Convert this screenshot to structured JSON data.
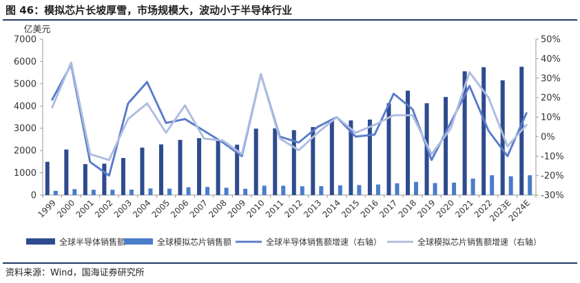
{
  "figure": {
    "title": "图 46：模拟芯片长坡厚雪，市场规模大，波动小于半导体行业",
    "source": "资料来源：Wind，国海证券研究所",
    "accent_color": "#1f3864"
  },
  "chart_data": {
    "type": "bar",
    "categories": [
      "1999",
      "2000",
      "2001",
      "2002",
      "2003",
      "2004",
      "2005",
      "2006",
      "2007",
      "2008",
      "2009",
      "2010",
      "2011",
      "2012",
      "2013",
      "2014",
      "2015",
      "2016",
      "2017",
      "2018",
      "2019",
      "2020",
      "2021",
      "2022",
      "2023E",
      "2024E"
    ],
    "y_left": {
      "label": "亿美元",
      "min": 0,
      "max": 7000,
      "ticks": [
        0,
        1000,
        2000,
        3000,
        4000,
        5000,
        6000,
        7000
      ]
    },
    "y_right": {
      "min": -30,
      "max": 50,
      "ticks": [
        -30,
        -20,
        -10,
        0,
        10,
        20,
        30,
        40,
        50
      ],
      "tick_labels": [
        "-30%",
        "-20%",
        "-10%",
        "0%",
        "10%",
        "20%",
        "30%",
        "40%",
        "50%"
      ]
    },
    "series": [
      {
        "name": "全球半导体销售额",
        "kind": "bar",
        "axis": "left",
        "color": "#2e4b8f",
        "values": [
          1494,
          2044,
          1390,
          1410,
          1663,
          2130,
          2275,
          2477,
          2556,
          2486,
          2263,
          2983,
          2995,
          2916,
          3056,
          3358,
          3352,
          3389,
          4122,
          4688,
          4123,
          4404,
          5559,
          5741,
          5151,
          5760
        ]
      },
      {
        "name": "全球模拟芯片销售额",
        "kind": "bar",
        "axis": "left",
        "color": "#4a7cc9",
        "values": [
          190,
          267,
          240,
          240,
          245,
          297,
          290,
          350,
          365,
          330,
          280,
          420,
          420,
          395,
          400,
          435,
          450,
          475,
          530,
          590,
          540,
          560,
          740,
          890,
          845,
          890
        ]
      },
      {
        "name": "全球半导体销售额增速（右轴）",
        "kind": "line",
        "axis": "right",
        "color": "#5b7ccb",
        "values": [
          19,
          37,
          -13,
          -20,
          17,
          28,
          7,
          9,
          3,
          -3,
          -10,
          32,
          0,
          -3,
          5,
          10,
          0,
          1,
          22,
          14,
          -12,
          7,
          26,
          3,
          -10,
          12
        ]
      },
      {
        "name": "全球模拟芯片销售额增速（右轴）",
        "kind": "line",
        "axis": "right",
        "color": "#aebde0",
        "values": [
          15,
          38,
          -9,
          -12,
          9,
          17,
          2,
          16,
          -1,
          -2,
          -9,
          32,
          -1,
          -7,
          2,
          10,
          2,
          6,
          11,
          11,
          -9,
          4,
          33,
          20,
          -5,
          6
        ]
      }
    ],
    "legend": {
      "position": "bottom"
    },
    "grid": false
  }
}
